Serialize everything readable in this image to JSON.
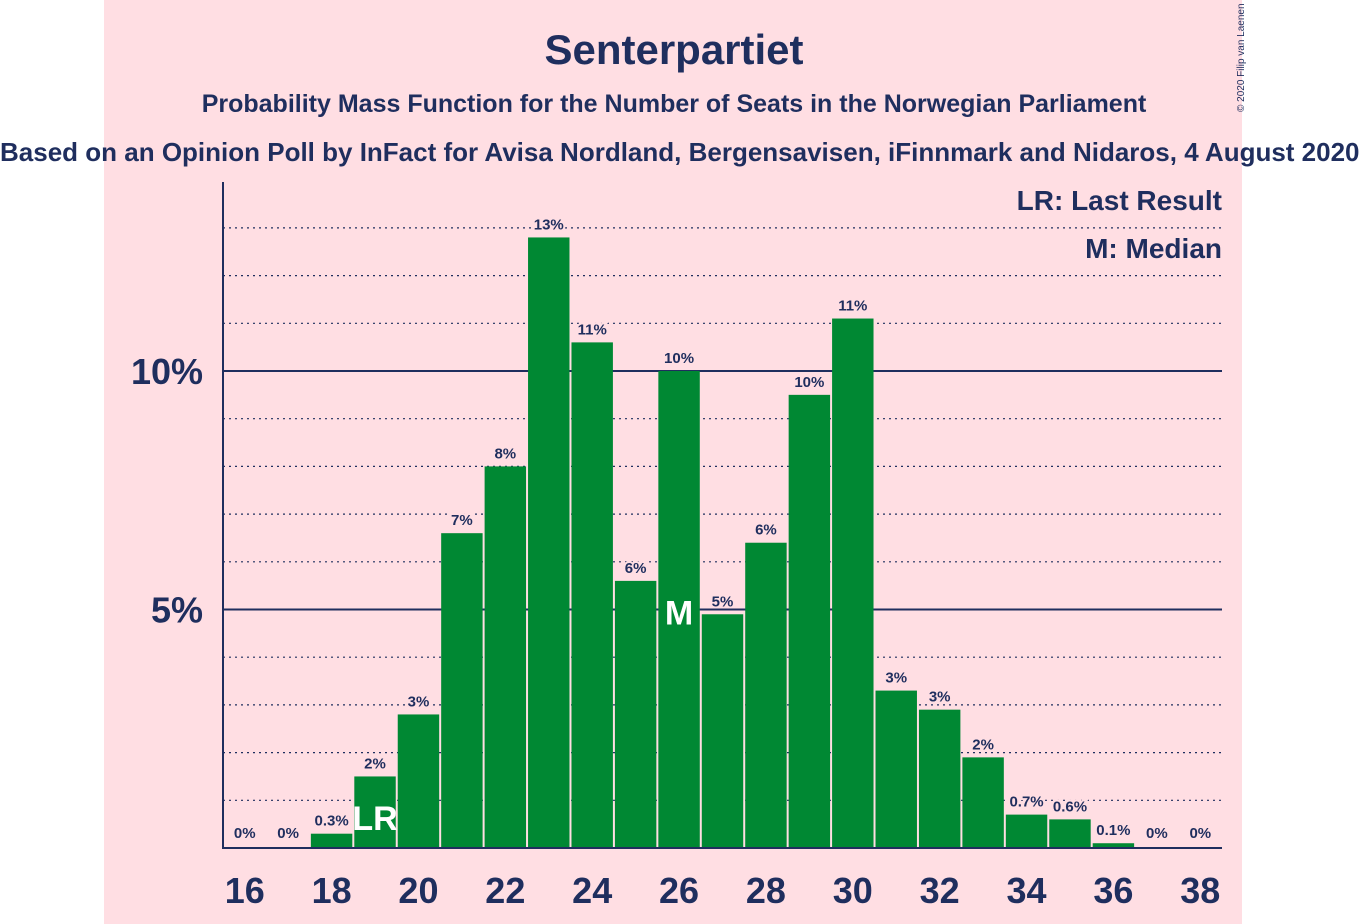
{
  "header": {
    "title": "Senterpartiet",
    "subtitle": "Probability Mass Function for the Number of Seats in the Norwegian Parliament",
    "source": "Based on an Opinion Poll by InFact for Avisa Nordland, Bergensavisen, iFinnmark and Nidaros, 4 August 2020",
    "copyright": "© 2020 Filip van Laenen"
  },
  "legend": {
    "last_result": "LR: Last Result",
    "median": "M: Median"
  },
  "colors": {
    "background": "#ffdee3",
    "bar": "#008833",
    "text": "#1f2e5e"
  },
  "chart_data": {
    "type": "bar",
    "title": "Senterpartiet",
    "xlabel": "",
    "ylabel": "",
    "x": [
      16,
      17,
      18,
      19,
      20,
      21,
      22,
      23,
      24,
      25,
      26,
      27,
      28,
      29,
      30,
      31,
      32,
      33,
      34,
      35,
      36,
      37,
      38
    ],
    "values": [
      0,
      0,
      0.3,
      1.5,
      2.8,
      6.6,
      8.0,
      12.8,
      10.6,
      5.6,
      10.0,
      4.9,
      6.4,
      9.5,
      11.1,
      3.3,
      2.9,
      1.9,
      0.7,
      0.6,
      0.1,
      0,
      0
    ],
    "labels": [
      "0%",
      "0%",
      "0.3%",
      "2%",
      "3%",
      "7%",
      "8%",
      "13%",
      "11%",
      "6%",
      "10%",
      "5%",
      "6%",
      "10%",
      "11%",
      "3%",
      "3%",
      "2%",
      "0.7%",
      "0.6%",
      "0.1%",
      "0%",
      "0%"
    ],
    "x_tick_labels": [
      "16",
      "18",
      "20",
      "22",
      "24",
      "26",
      "28",
      "30",
      "32",
      "34",
      "36",
      "38"
    ],
    "y_ticks": [
      5,
      10
    ],
    "y_tick_labels": [
      "5%",
      "10%"
    ],
    "ylim": [
      0,
      14
    ],
    "minor_grid_step": 1,
    "last_result_seat": 19,
    "last_result_marker": "LR",
    "median_seat": 26,
    "median_marker": "M"
  }
}
